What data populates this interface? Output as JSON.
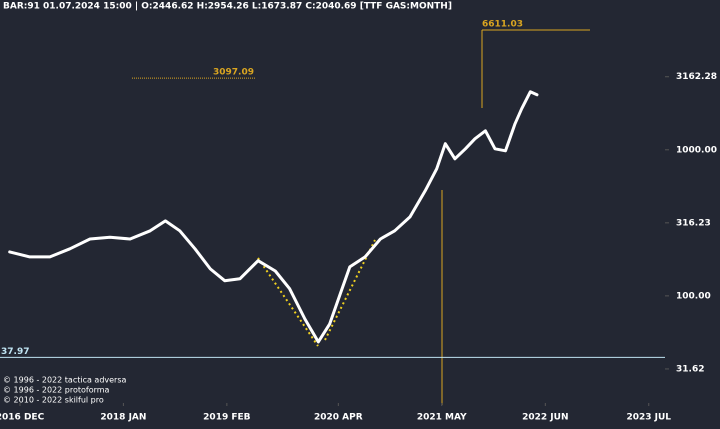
{
  "header": "BAR:91 01.07.2024 15:00 | O:2446.62 H:2954.26 L:1673.87 C:2040.69  [TTF GAS:MONTH]",
  "copyright": [
    "© 1996 - 2022 tactica adversa",
    "© 1996 - 2022 protoforma",
    "© 2010 - 2022 skilful pro"
  ],
  "chart_data": {
    "type": "line",
    "log_scale": true,
    "color": "#ffffff",
    "x": [
      2016.81,
      2017.02,
      2017.23,
      2017.44,
      2017.65,
      2017.86,
      2018.07,
      2018.28,
      2018.44,
      2018.59,
      2018.75,
      2018.91,
      2019.06,
      2019.22,
      2019.41,
      2019.59,
      2019.74,
      2019.9,
      2020.04,
      2020.16,
      2020.27,
      2020.37,
      2020.53,
      2020.69,
      2020.84,
      2021.0,
      2021.16,
      2021.28,
      2021.37,
      2021.47,
      2021.58,
      2021.68,
      2021.79,
      2021.89,
      2022.0,
      2022.1,
      2022.17,
      2022.26,
      2022.33
    ],
    "values": [
      200,
      185,
      185,
      210,
      245,
      252,
      245,
      279,
      326,
      279,
      210,
      153,
      127,
      131,
      174,
      148,
      112,
      69.5,
      48.4,
      64.3,
      103,
      158,
      185,
      245,
      279,
      347,
      524,
      741,
      1100,
      867,
      1016,
      1189,
      1349,
      1016,
      984,
      1507,
      1910,
      2495,
      2380
    ],
    "xlim": [
      2016.708,
      2023.67
    ],
    "ylim": [
      20,
      10600
    ],
    "xticks": [
      {
        "value": 2016.917,
        "label": "2016 DEC"
      },
      {
        "value": 2018.0,
        "label": "2018 JAN"
      },
      {
        "value": 2019.083,
        "label": "2019 FEB"
      },
      {
        "value": 2020.25,
        "label": "2020 APR"
      },
      {
        "value": 2021.333,
        "label": "2021 MAY"
      },
      {
        "value": 2022.417,
        "label": "2022 JUN"
      },
      {
        "value": 2023.5,
        "label": "2023 JUL"
      }
    ],
    "yticks": [
      31.62,
      {
        "value": 100,
        "label": "100.00"
      },
      316.23,
      {
        "value": 1000,
        "label": "1000.00"
      },
      3162.28
    ],
    "levels": [
      6611.03,
      3097.09,
      37.97
    ],
    "level_colors": [
      "#d9a521",
      "#d9a521",
      "#bfe3f2"
    ]
  }
}
